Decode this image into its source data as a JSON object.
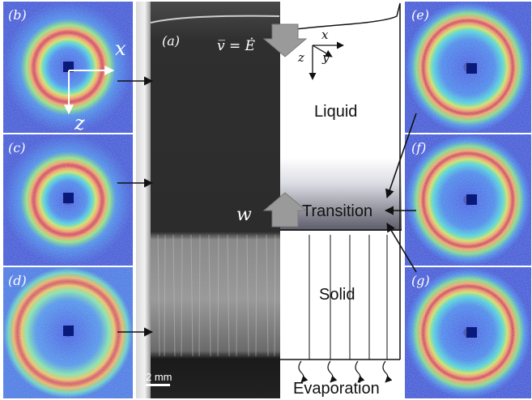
{
  "figure": {
    "panel_labels": {
      "a": "(a)",
      "b": "(b)",
      "c": "(c)",
      "d": "(d)",
      "e": "(e)",
      "f": "(f)",
      "g": "(g)"
    },
    "saxs_axes": {
      "x": "x",
      "z": "z"
    },
    "scale_bar": "2 mm",
    "schematic": {
      "velocity": "v̅ = Ė",
      "coords": {
        "x": "x",
        "y": "y",
        "z": "z"
      },
      "w": "w",
      "regions": {
        "liquid": "Liquid",
        "transition": "Transition",
        "solid": "Solid",
        "evaporation": "Evaporation"
      }
    },
    "colors": {
      "pattern_background": "#1f3fd1",
      "ring_hot": "#c81e0a",
      "transition_gradient": "#6a6a78",
      "photo_dark": "#333333"
    }
  }
}
